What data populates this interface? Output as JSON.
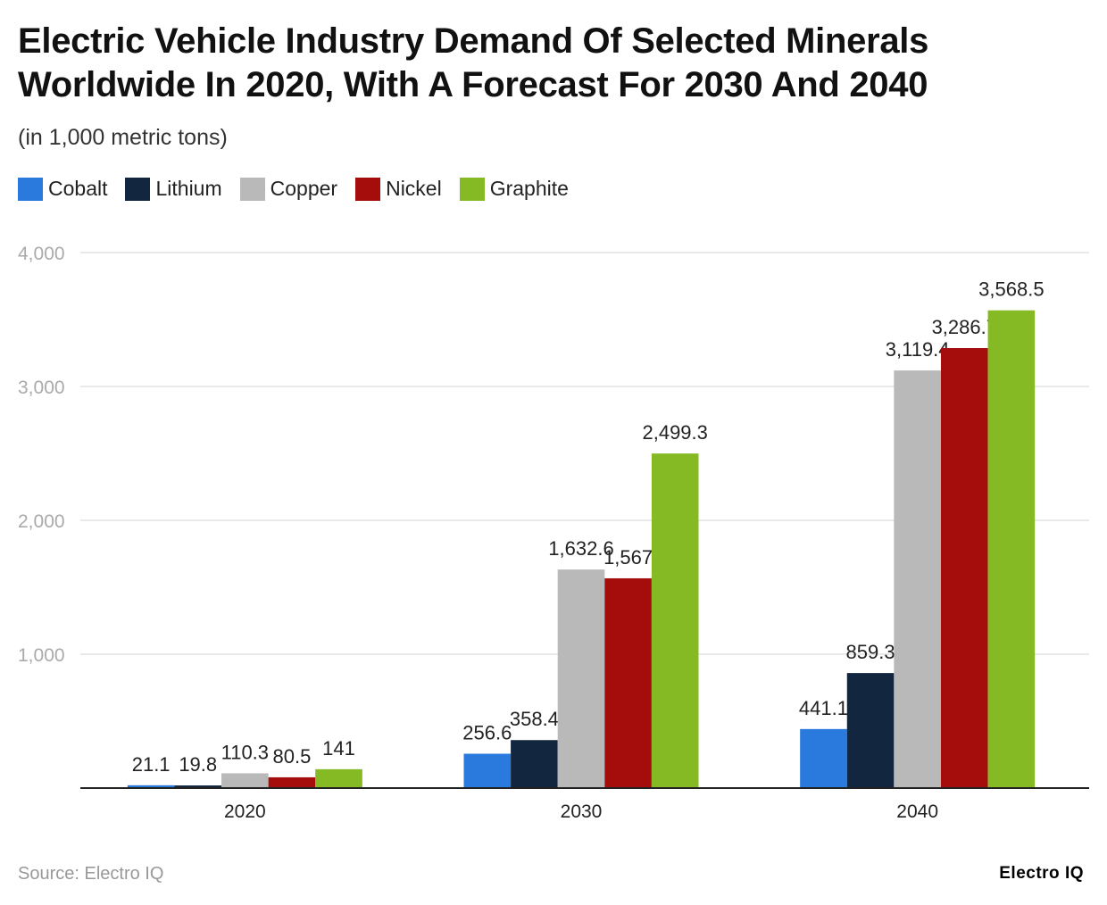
{
  "chart_data": {
    "type": "bar",
    "title": "Electric Vehicle Industry Demand Of Selected Minerals Worldwide In 2020, With A Forecast For 2030 And 2040",
    "subtitle": "(in 1,000 metric tons)",
    "categories": [
      "2020",
      "2030",
      "2040"
    ],
    "series": [
      {
        "name": "Cobalt",
        "color": "#2a7ade",
        "values": [
          21.1,
          256.6,
          441.1
        ],
        "labels": [
          "21.1",
          "256.6",
          "441.1"
        ]
      },
      {
        "name": "Lithium",
        "color": "#12263f",
        "values": [
          19.8,
          358.4,
          859.3
        ],
        "labels": [
          "19.8",
          "358.4",
          "859.3"
        ]
      },
      {
        "name": "Copper",
        "color": "#b9b9b9",
        "values": [
          110.3,
          1632.6,
          3119.4
        ],
        "labels": [
          "110.3",
          "1,632.6",
          "3,119.4"
        ]
      },
      {
        "name": "Nickel",
        "color": "#a50d0d",
        "values": [
          80.5,
          1567,
          3286.7
        ],
        "labels": [
          "80.5",
          "1,567",
          "3,286.7"
        ]
      },
      {
        "name": "Graphite",
        "color": "#86ba25",
        "values": [
          141,
          2499.3,
          3568.5
        ],
        "labels": [
          "141",
          "2,499.3",
          "3,568.5"
        ]
      }
    ],
    "ylim": [
      0,
      4000
    ],
    "yticks": [
      1000,
      2000,
      3000,
      4000
    ],
    "ytick_labels": [
      "1,000",
      "2,000",
      "3,000",
      "4,000"
    ],
    "grid": true,
    "legend_position": "top-left",
    "xlabel": "",
    "ylabel": ""
  },
  "footer": {
    "source": "Source: Electro IQ",
    "brand": "Electro IQ"
  }
}
